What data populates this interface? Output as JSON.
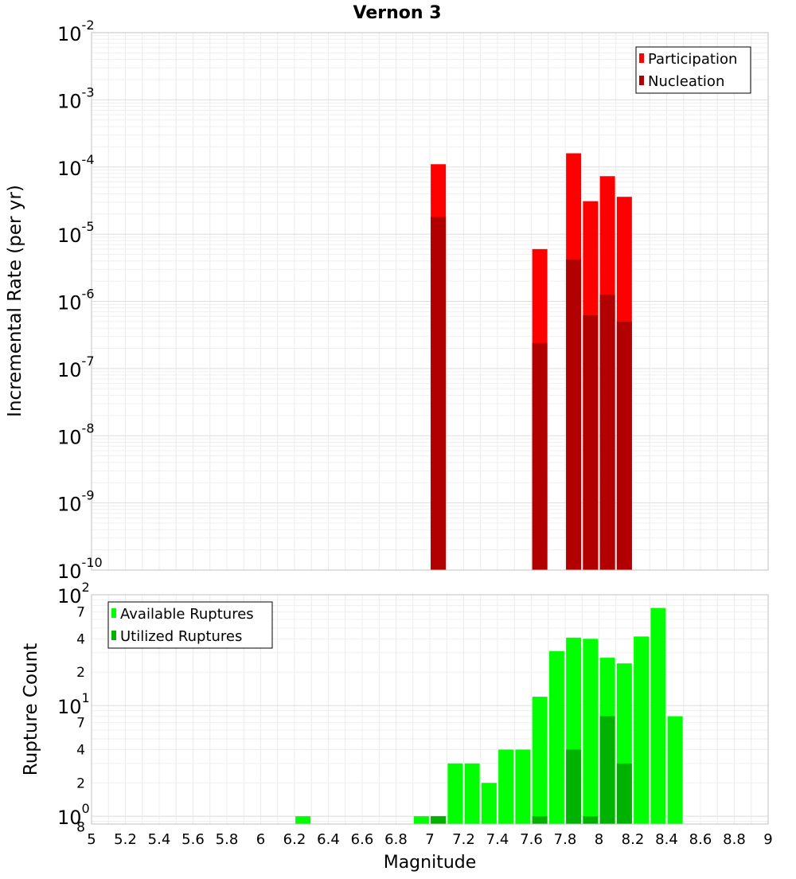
{
  "chart_data": [
    {
      "type": "bar",
      "title": "Vernon 3",
      "ylabel": "Incremental Rate (per yr)",
      "xlabel": "",
      "yscale": "log",
      "ylim": [
        1e-10,
        0.01
      ],
      "xlim": [
        5,
        9
      ],
      "bin_width": 0.1,
      "y_decade_ticks": [
        {
          "base": "10",
          "exp": "-10",
          "value": 1e-10
        },
        {
          "base": "10",
          "exp": "-9",
          "value": 1e-09
        },
        {
          "base": "10",
          "exp": "-8",
          "value": 1e-08
        },
        {
          "base": "10",
          "exp": "-7",
          "value": 1e-07
        },
        {
          "base": "10",
          "exp": "-6",
          "value": 1e-06
        },
        {
          "base": "10",
          "exp": "-5",
          "value": 1e-05
        },
        {
          "base": "10",
          "exp": "-4",
          "value": 0.0001
        },
        {
          "base": "10",
          "exp": "-3",
          "value": 0.001
        },
        {
          "base": "10",
          "exp": "-2",
          "value": 0.01
        }
      ],
      "legend": {
        "position": "top-right",
        "entries": [
          "Participation",
          "Nucleation"
        ]
      },
      "series": [
        {
          "name": "Participation",
          "color": "#ff0000",
          "x": [
            7.05,
            7.65,
            7.85,
            7.95,
            8.05,
            8.15
          ],
          "values": [
            0.00011,
            6e-06,
            0.00016,
            3.1e-05,
            7.3e-05,
            3.6e-05
          ]
        },
        {
          "name": "Nucleation",
          "color": "#b20000",
          "x": [
            7.05,
            7.65,
            7.85,
            7.95,
            8.05,
            8.15
          ],
          "values": [
            1.8e-05,
            2.4e-07,
            4.2e-06,
            6.2e-07,
            1.25e-06,
            5e-07
          ]
        }
      ]
    },
    {
      "type": "bar",
      "title": "",
      "ylabel": "Rupture Count",
      "xlabel": "Magnitude",
      "yscale": "log",
      "ylim": [
        0.85,
        100
      ],
      "xlim": [
        5,
        9
      ],
      "bin_width": 0.1,
      "x_ticks": [
        "5",
        "5.2",
        "5.4",
        "5.6",
        "5.8",
        "6",
        "6.2",
        "6.4",
        "6.6",
        "6.8",
        "7",
        "7.2",
        "7.4",
        "7.6",
        "7.8",
        "8",
        "8.2",
        "8.4",
        "8.6",
        "8.8",
        "9"
      ],
      "y_decade_ticks": [
        {
          "base": "10",
          "exp": "0",
          "value": 1
        },
        {
          "base": "10",
          "exp": "1",
          "value": 10
        },
        {
          "base": "10",
          "exp": "2",
          "value": 100
        }
      ],
      "y_minor_ticks": [
        {
          "label": "8",
          "value": 0.8
        },
        {
          "label": "2",
          "value": 2
        },
        {
          "label": "4",
          "value": 4
        },
        {
          "label": "7",
          "value": 7
        },
        {
          "label": "2",
          "value": 20
        },
        {
          "label": "4",
          "value": 40
        },
        {
          "label": "7",
          "value": 70
        }
      ],
      "legend": {
        "position": "top-left",
        "entries": [
          "Available Ruptures",
          "Utilized Ruptures"
        ]
      },
      "series": [
        {
          "name": "Available Ruptures",
          "color": "#00ff00",
          "x": [
            6.25,
            6.95,
            7.05,
            7.15,
            7.25,
            7.35,
            7.45,
            7.55,
            7.65,
            7.75,
            7.85,
            7.95,
            8.05,
            8.15,
            8.25,
            8.35,
            8.45
          ],
          "values": [
            1,
            1,
            1,
            3,
            3,
            2,
            4,
            4,
            12,
            31,
            41,
            40,
            27,
            24,
            42,
            76,
            8
          ]
        },
        {
          "name": "Utilized Ruptures",
          "color": "#00b200",
          "x": [
            7.05,
            7.65,
            7.85,
            7.95,
            8.05,
            8.15
          ],
          "values": [
            1,
            1,
            4,
            1,
            8,
            3
          ]
        }
      ]
    }
  ]
}
